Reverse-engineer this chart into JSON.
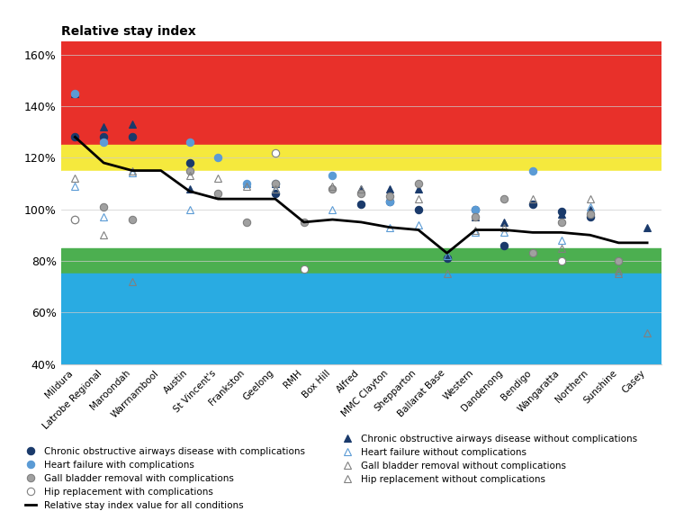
{
  "hospitals": [
    "Mildura",
    "Latrobe Regional",
    "Maroondah",
    "Warrnambool",
    "Austin",
    "St Vincent's",
    "Frankston",
    "Geelong",
    "RMH",
    "Box Hill",
    "Alfred",
    "MMC Clayton",
    "Shepparton",
    "Ballarat Base",
    "Western",
    "Dandenong",
    "Bendigo",
    "Wangaratta",
    "Northern",
    "Sunshine",
    "Casey"
  ],
  "line_values": [
    128,
    118,
    115,
    115,
    107,
    104,
    104,
    104,
    95,
    96,
    95,
    93,
    92,
    83,
    92,
    92,
    91,
    91,
    90,
    87,
    87
  ],
  "background_bands": [
    {
      "ymin": 1.25,
      "ymax": 1.65,
      "color": "#e8302a"
    },
    {
      "ymin": 1.15,
      "ymax": 1.25,
      "color": "#f5e93d"
    },
    {
      "ymin": 0.85,
      "ymax": 1.15,
      "color": "#ffffff"
    },
    {
      "ymin": 0.75,
      "ymax": 0.85,
      "color": "#4caf50"
    },
    {
      "ymin": 0.4,
      "ymax": 0.75,
      "color": "#29abe2"
    }
  ],
  "series": {
    "COAD_with": {
      "label": "Chronic obstructive airways disease with complications",
      "marker": "o",
      "mfc": "#1a3a6b",
      "mec": "#1a3a6b",
      "ms": 6,
      "values": [
        128,
        128,
        128,
        null,
        118,
        null,
        null,
        106,
        null,
        null,
        102,
        103,
        100,
        81,
        100,
        86,
        102,
        99,
        97,
        null,
        null
      ]
    },
    "COAD_without": {
      "label": "Chronic obstructive airways disease without complications",
      "marker": "^",
      "mfc": "#1a3a6b",
      "mec": "#1a3a6b",
      "ms": 6,
      "values": [
        145,
        132,
        133,
        null,
        108,
        null,
        110,
        110,
        null,
        null,
        108,
        108,
        108,
        null,
        97,
        95,
        null,
        98,
        100,
        null,
        93
      ]
    },
    "HF_with": {
      "label": "Heart failure with complications",
      "marker": "o",
      "mfc": "#5b9bd5",
      "mec": "#5b9bd5",
      "ms": 6,
      "values": [
        145,
        126,
        null,
        null,
        126,
        120,
        110,
        110,
        null,
        113,
        null,
        103,
        null,
        null,
        100,
        null,
        115,
        null,
        null,
        null,
        null
      ]
    },
    "HF_without": {
      "label": "Heart failure without complications",
      "marker": "^",
      "mfc": "none",
      "mec": "#5b9bd5",
      "ms": 6,
      "values": [
        109,
        97,
        114,
        null,
        100,
        null,
        110,
        108,
        null,
        100,
        null,
        93,
        94,
        82,
        91,
        91,
        null,
        88,
        101,
        null,
        null
      ]
    },
    "GB_with": {
      "label": "Gall bladder removal with complications",
      "marker": "o",
      "mfc": "#a0a0a0",
      "mec": "#808080",
      "ms": 6,
      "values": [
        96,
        101,
        96,
        null,
        115,
        106,
        95,
        110,
        95,
        108,
        106,
        105,
        110,
        null,
        97,
        104,
        83,
        95,
        98,
        80,
        null
      ]
    },
    "GB_without": {
      "label": "Gall bladder removal without complications",
      "marker": "^",
      "mfc": "none",
      "mec": "#808080",
      "ms": 6,
      "values": [
        112,
        90,
        115,
        null,
        113,
        112,
        109,
        108,
        null,
        109,
        108,
        null,
        104,
        75,
        92,
        93,
        104,
        85,
        104,
        76,
        null
      ]
    },
    "HR_with": {
      "label": "Hip replacement with complications",
      "marker": "o",
      "mfc": "white",
      "mec": "#808080",
      "ms": 6,
      "values": [
        96,
        null,
        null,
        null,
        null,
        null,
        null,
        122,
        77,
        null,
        null,
        null,
        null,
        null,
        null,
        null,
        null,
        80,
        null,
        null,
        null
      ]
    },
    "HR_without": {
      "label": "Hip replacement without complications",
      "marker": "^",
      "mfc": "none",
      "mec": "#808080",
      "ms": 6,
      "values": [
        null,
        null,
        72,
        null,
        null,
        null,
        null,
        null,
        null,
        null,
        null,
        null,
        null,
        null,
        null,
        null,
        null,
        null,
        null,
        75,
        52
      ]
    }
  },
  "ylim": [
    0.4,
    1.65
  ],
  "yticks": [
    0.4,
    0.6,
    0.8,
    1.0,
    1.2,
    1.4,
    1.6
  ],
  "ytick_labels": [
    "40%",
    "60%",
    "80%",
    "100%",
    "120%",
    "140%",
    "160%"
  ],
  "title": "Relative stay index",
  "title_fontsize": 10,
  "legend_col1": [
    {
      "type": "scatter",
      "marker": "o",
      "mfc": "#1a3a6b",
      "mec": "#1a3a6b",
      "label": "Chronic obstructive airways disease with complications"
    },
    {
      "type": "scatter",
      "marker": "o",
      "mfc": "#5b9bd5",
      "mec": "#5b9bd5",
      "label": "Heart failure with complications"
    },
    {
      "type": "scatter",
      "marker": "o",
      "mfc": "#a0a0a0",
      "mec": "#808080",
      "label": "Gall bladder removal with complications"
    },
    {
      "type": "scatter",
      "marker": "o",
      "mfc": "white",
      "mec": "#808080",
      "label": "Hip replacement with complications"
    },
    {
      "type": "line",
      "color": "black",
      "label": "Relative stay index value for all conditions"
    }
  ],
  "legend_col2": [
    {
      "type": "scatter",
      "marker": "^",
      "mfc": "#1a3a6b",
      "mec": "#1a3a6b",
      "label": "Chronic obstructive airways disease without complications"
    },
    {
      "type": "scatter",
      "marker": "^",
      "mfc": "none",
      "mec": "#5b9bd5",
      "label": "Heart failure without complications"
    },
    {
      "type": "scatter",
      "marker": "^",
      "mfc": "none",
      "mec": "#808080",
      "label": "Gall bladder removal without complications"
    },
    {
      "type": "scatter",
      "marker": "^",
      "mfc": "none",
      "mec": "#808080",
      "label": "Hip replacement without complications"
    }
  ]
}
